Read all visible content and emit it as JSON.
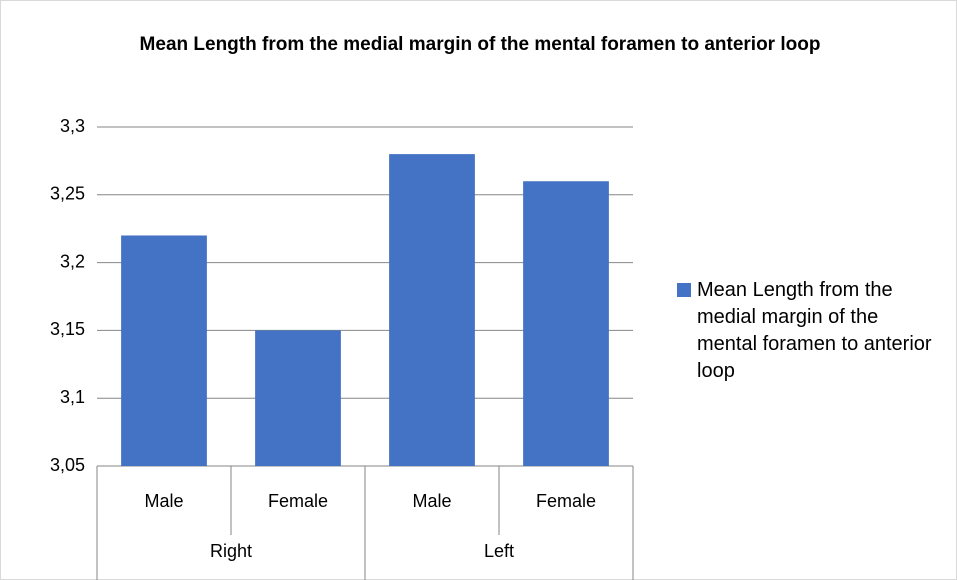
{
  "chart_data": {
    "type": "bar",
    "title": "Mean Length from the medial margin of the mental foramen to anterior loop",
    "categories": [
      "Male",
      "Female",
      "Male",
      "Female"
    ],
    "category_groups": [
      "Right",
      "Left"
    ],
    "series": [
      {
        "name": "Mean Length from the medial margin of the mental foramen to anterior loop",
        "color": "#4472c4",
        "values": [
          3.22,
          3.15,
          3.28,
          3.26
        ]
      }
    ],
    "ylim": [
      3.05,
      3.3
    ],
    "yticks": [
      {
        "value": 3.05,
        "label": "3,05"
      },
      {
        "value": 3.1,
        "label": "3,1"
      },
      {
        "value": 3.15,
        "label": "3,15"
      },
      {
        "value": 3.2,
        "label": "3,2"
      },
      {
        "value": 3.25,
        "label": "3,25"
      },
      {
        "value": 3.3,
        "label": "3,3"
      }
    ],
    "grid": true,
    "legend": "right"
  }
}
